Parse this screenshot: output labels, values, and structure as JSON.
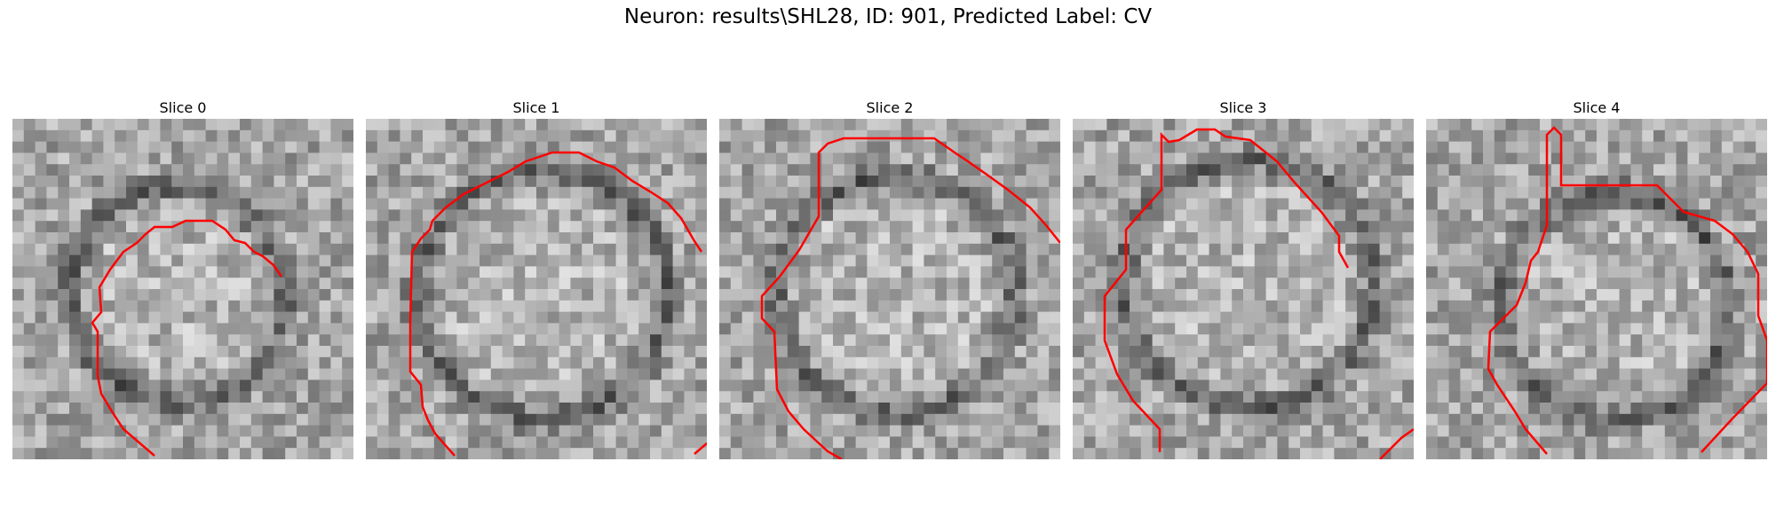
{
  "figure": {
    "title": "Neuron: results\\SHL28, ID: 901, Predicted Label: CV",
    "contour_color": "#ff0000"
  },
  "panels": [
    {
      "title": "Slice 0",
      "image": "noisy grayscale micrograph with cell outline"
    },
    {
      "title": "Slice 1",
      "image": "noisy grayscale micrograph with cell outline"
    },
    {
      "title": "Slice 2",
      "image": "noisy grayscale micrograph with cell outline"
    },
    {
      "title": "Slice 3",
      "image": "noisy grayscale micrograph with cell outline"
    },
    {
      "title": "Slice 4",
      "image": "noisy grayscale micrograph with cell outline"
    }
  ]
}
